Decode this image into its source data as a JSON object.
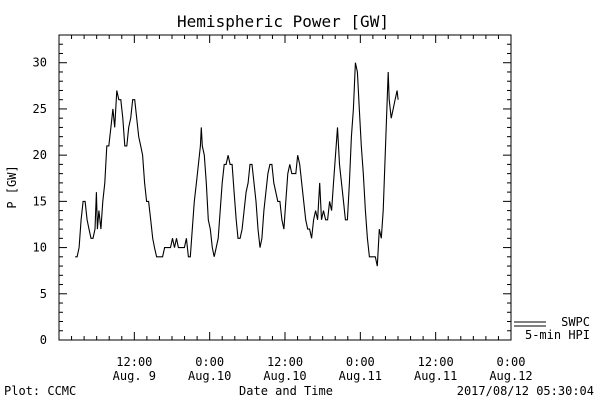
{
  "chart_data": {
    "type": "line",
    "title": "Hemispheric Power [GW]",
    "xlabel": "Date and Time",
    "ylabel": "P [GW]",
    "ylim": [
      0,
      33
    ],
    "y_ticks": [
      0,
      5,
      10,
      15,
      20,
      25,
      30
    ],
    "xlim_hours": [
      -6,
      30
    ],
    "x_ticks": [
      {
        "hour": 0,
        "time": "12:00",
        "date": "Aug. 9"
      },
      {
        "hour": 6,
        "time": "0:00",
        "date": "Aug.10"
      },
      {
        "hour": 12,
        "time": "12:00",
        "date": "Aug.10"
      },
      {
        "hour": 18,
        "time": "0:00",
        "date": "Aug.11"
      },
      {
        "hour": 24,
        "time": "12:00",
        "date": "Aug.11"
      },
      {
        "hour": 30,
        "time": "0:00",
        "date": "Aug.12"
      }
    ],
    "legend": {
      "items": [
        "SWPC",
        "5-min HPI"
      ],
      "placement": "bottom-right"
    },
    "series": [
      {
        "name": "5-min HPI",
        "color": "#000000",
        "points": [
          [
            -4.71,
            9
          ],
          [
            -4.56,
            9
          ],
          [
            -4.4,
            10
          ],
          [
            -4.24,
            13
          ],
          [
            -4.08,
            15
          ],
          [
            -3.92,
            15
          ],
          [
            -3.76,
            13
          ],
          [
            -3.61,
            12
          ],
          [
            -3.45,
            11
          ],
          [
            -3.29,
            11
          ],
          [
            -3.13,
            12
          ],
          [
            -3.02,
            16
          ],
          [
            -2.94,
            12
          ],
          [
            -2.82,
            14
          ],
          [
            -2.66,
            12
          ],
          [
            -2.51,
            15
          ],
          [
            -2.35,
            17
          ],
          [
            -2.19,
            21
          ],
          [
            -2.03,
            21
          ],
          [
            -1.87,
            23
          ],
          [
            -1.71,
            25
          ],
          [
            -1.56,
            23
          ],
          [
            -1.4,
            27
          ],
          [
            -1.24,
            26
          ],
          [
            -1.08,
            26
          ],
          [
            -0.92,
            24
          ],
          [
            -0.76,
            21
          ],
          [
            -0.6,
            21
          ],
          [
            -0.45,
            23
          ],
          [
            -0.29,
            24
          ],
          [
            -0.13,
            26
          ],
          [
            0.03,
            26
          ],
          [
            0.19,
            24
          ],
          [
            0.35,
            22
          ],
          [
            0.51,
            21
          ],
          [
            0.66,
            20
          ],
          [
            0.82,
            17
          ],
          [
            0.98,
            15
          ],
          [
            1.14,
            15
          ],
          [
            1.3,
            13
          ],
          [
            1.46,
            11
          ],
          [
            1.61,
            10
          ],
          [
            1.77,
            9
          ],
          [
            1.93,
            9
          ],
          [
            2.09,
            9
          ],
          [
            2.25,
            9
          ],
          [
            2.41,
            10
          ],
          [
            2.56,
            10
          ],
          [
            2.72,
            10
          ],
          [
            2.88,
            10
          ],
          [
            3.04,
            11
          ],
          [
            3.2,
            10
          ],
          [
            3.36,
            11
          ],
          [
            3.51,
            10
          ],
          [
            3.67,
            10
          ],
          [
            3.83,
            10
          ],
          [
            3.99,
            10
          ],
          [
            4.15,
            11
          ],
          [
            4.31,
            9
          ],
          [
            4.46,
            9
          ],
          [
            4.62,
            12
          ],
          [
            4.78,
            15
          ],
          [
            4.94,
            17
          ],
          [
            5.1,
            19
          ],
          [
            5.26,
            21
          ],
          [
            5.33,
            23
          ],
          [
            5.41,
            21
          ],
          [
            5.57,
            20
          ],
          [
            5.73,
            17
          ],
          [
            5.89,
            13
          ],
          [
            6.05,
            12
          ],
          [
            6.21,
            10
          ],
          [
            6.36,
            9
          ],
          [
            6.52,
            10
          ],
          [
            6.68,
            11
          ],
          [
            6.84,
            14
          ],
          [
            7.0,
            17
          ],
          [
            7.16,
            19
          ],
          [
            7.31,
            19
          ],
          [
            7.47,
            20
          ],
          [
            7.63,
            19
          ],
          [
            7.79,
            19
          ],
          [
            7.95,
            16
          ],
          [
            8.11,
            13
          ],
          [
            8.26,
            11
          ],
          [
            8.42,
            11
          ],
          [
            8.58,
            12
          ],
          [
            8.74,
            14
          ],
          [
            8.9,
            16
          ],
          [
            9.06,
            17
          ],
          [
            9.21,
            19
          ],
          [
            9.37,
            19
          ],
          [
            9.53,
            17
          ],
          [
            9.69,
            15
          ],
          [
            9.85,
            12
          ],
          [
            10.01,
            10
          ],
          [
            10.16,
            11
          ],
          [
            10.32,
            14
          ],
          [
            10.48,
            16
          ],
          [
            10.64,
            18
          ],
          [
            10.8,
            19
          ],
          [
            10.96,
            19
          ],
          [
            11.11,
            17
          ],
          [
            11.27,
            16
          ],
          [
            11.43,
            15
          ],
          [
            11.59,
            15
          ],
          [
            11.75,
            13
          ],
          [
            11.91,
            12
          ],
          [
            12.06,
            15
          ],
          [
            12.22,
            18
          ],
          [
            12.38,
            19
          ],
          [
            12.54,
            18
          ],
          [
            12.7,
            18
          ],
          [
            12.86,
            18
          ],
          [
            13.01,
            20
          ],
          [
            13.17,
            19
          ],
          [
            13.33,
            17
          ],
          [
            13.49,
            15
          ],
          [
            13.65,
            13
          ],
          [
            13.81,
            12
          ],
          [
            13.96,
            12
          ],
          [
            14.12,
            11
          ],
          [
            14.28,
            13
          ],
          [
            14.44,
            14
          ],
          [
            14.6,
            13
          ],
          [
            14.76,
            17
          ],
          [
            14.91,
            13
          ],
          [
            15.07,
            14
          ],
          [
            15.23,
            13
          ],
          [
            15.39,
            13
          ],
          [
            15.55,
            15
          ],
          [
            15.71,
            14
          ],
          [
            15.86,
            17
          ],
          [
            16.02,
            20
          ],
          [
            16.18,
            23
          ],
          [
            16.34,
            19
          ],
          [
            16.5,
            17
          ],
          [
            16.66,
            15
          ],
          [
            16.81,
            13
          ],
          [
            16.97,
            13
          ],
          [
            17.13,
            17
          ],
          [
            17.29,
            22
          ],
          [
            17.45,
            25
          ],
          [
            17.61,
            30
          ],
          [
            17.77,
            29
          ],
          [
            17.92,
            25
          ],
          [
            18.08,
            21
          ],
          [
            18.24,
            18
          ],
          [
            18.4,
            14
          ],
          [
            18.56,
            11
          ],
          [
            18.72,
            9
          ],
          [
            18.87,
            9
          ],
          [
            19.03,
            9
          ],
          [
            19.19,
            9
          ],
          [
            19.35,
            8
          ],
          [
            19.51,
            12
          ],
          [
            19.67,
            11
          ],
          [
            19.82,
            14
          ],
          [
            19.98,
            20
          ],
          [
            20.14,
            26
          ],
          [
            20.22,
            29
          ],
          [
            20.3,
            26
          ],
          [
            20.46,
            24
          ],
          [
            20.62,
            25
          ],
          [
            20.77,
            26
          ],
          [
            20.93,
            27
          ],
          [
            21.01,
            26
          ]
        ]
      }
    ],
    "footer": {
      "left": "Plot: CCMC",
      "right": "2017/08/12 05:30:04"
    }
  }
}
